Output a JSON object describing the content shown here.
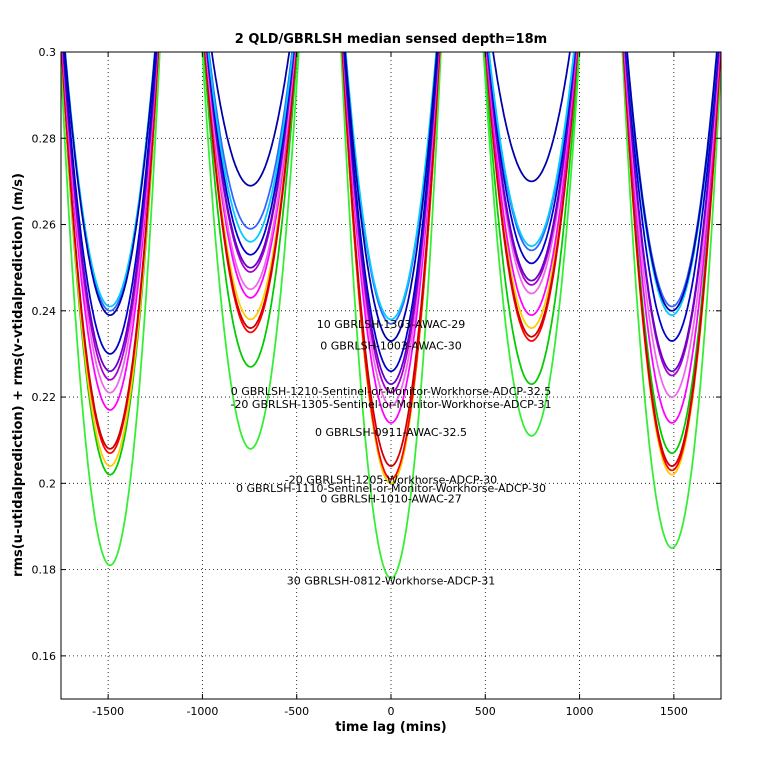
{
  "chart_data": {
    "type": "line",
    "title": "2 QLD/GBRLSH median sensed depth=18m",
    "xlabel": "time lag (mins)",
    "ylabel": "rms(u-utidalprediction) + rms(v-vtidalprediction) (m/s)",
    "xlim": [
      -1750,
      1750
    ],
    "ylim": [
      0.15,
      0.3
    ],
    "grid": true,
    "x_ticks": [
      -1500,
      -1000,
      -500,
      0,
      500,
      1000,
      1500
    ],
    "x_tick_labels": [
      "-1500",
      "-1000",
      "-500",
      "0",
      "500",
      "1000",
      "1500"
    ],
    "y_ticks": [
      0.16,
      0.18,
      0.2,
      0.22,
      0.24,
      0.26,
      0.28,
      0.3
    ],
    "y_tick_labels": [
      "0.16",
      "0.18",
      "0.2",
      "0.22",
      "0.24",
      "0.26",
      "0.28",
      "0.3"
    ],
    "minima_x": [
      -1490,
      -745,
      0,
      745,
      1490
    ],
    "series": [
      {
        "color": "#00cc00",
        "minima": [
          0.202,
          0.227,
          0.2,
          0.223,
          0.207
        ],
        "width": 1.1
      },
      {
        "color": "#33ee33",
        "minima": [
          0.181,
          0.208,
          0.178,
          0.211,
          0.185
        ],
        "width": 1.1
      },
      {
        "color": "#ffcc00",
        "minima": [
          0.204,
          0.238,
          0.2,
          0.236,
          0.202
        ],
        "width": 1.1
      },
      {
        "color": "#ff0000",
        "minima": [
          0.207,
          0.235,
          0.201,
          0.233,
          0.203
        ],
        "width": 1.1
      },
      {
        "color": "#cc0000",
        "minima": [
          0.208,
          0.236,
          0.204,
          0.234,
          0.204
        ],
        "width": 1.1
      },
      {
        "color": "#ff00ff",
        "minima": [
          0.217,
          0.243,
          0.214,
          0.239,
          0.214
        ],
        "width": 1.1
      },
      {
        "color": "#ee66ee",
        "minima": [
          0.221,
          0.245,
          0.218,
          0.244,
          0.22
        ],
        "width": 1.1
      },
      {
        "color": "#aa00cc",
        "minima": [
          0.224,
          0.249,
          0.221,
          0.246,
          0.225
        ],
        "width": 1.1
      },
      {
        "color": "#6600cc",
        "minima": [
          0.226,
          0.25,
          0.223,
          0.247,
          0.226
        ],
        "width": 1.1
      },
      {
        "color": "#0000cc",
        "minima": [
          0.23,
          0.253,
          0.226,
          0.251,
          0.233
        ],
        "width": 1.1
      },
      {
        "color": "#3366ff",
        "minima": [
          0.24,
          0.259,
          0.237,
          0.254,
          0.241
        ],
        "width": 1.1
      },
      {
        "color": "#00ccff",
        "minima": [
          0.241,
          0.256,
          0.238,
          0.255,
          0.239
        ],
        "width": 1.1
      },
      {
        "color": "#0000aa",
        "minima": [
          0.239,
          0.269,
          0.233,
          0.27,
          0.24
        ],
        "width": 1.1
      }
    ],
    "annotations": [
      {
        "text": "10 GBRLSH-1303-AWAC-29",
        "x": 0,
        "y": 0.236
      },
      {
        "text": "0 GBRLSH-1003-AWAC-30",
        "x": 0,
        "y": 0.231
      },
      {
        "text": "0 GBRLSH-1210-Sentinel-or-Monitor-Workhorse-ADCP-32.5",
        "x": 0,
        "y": 0.2205
      },
      {
        "text": "-20 GBRLSH-1305-Sentinel-or-Monitor-Workhorse-ADCP-31",
        "x": 0,
        "y": 0.2175
      },
      {
        "text": "0 GBRLSH-0911-AWAC-32.5",
        "x": 0,
        "y": 0.211
      },
      {
        "text": "-20 GBRLSH-1205-Workhorse-ADCP-30",
        "x": 0,
        "y": 0.2
      },
      {
        "text": "0 GBRLSH-1110-Sentinel-or-Monitor-Workhorse-ADCP-30",
        "x": 0,
        "y": 0.198
      },
      {
        "text": "0 GBRLSH-1010-AWAC-27",
        "x": 0,
        "y": 0.1955
      },
      {
        "text": "30 GBRLSH-0812-Workhorse-ADCP-31",
        "x": 0,
        "y": 0.1765
      }
    ]
  }
}
